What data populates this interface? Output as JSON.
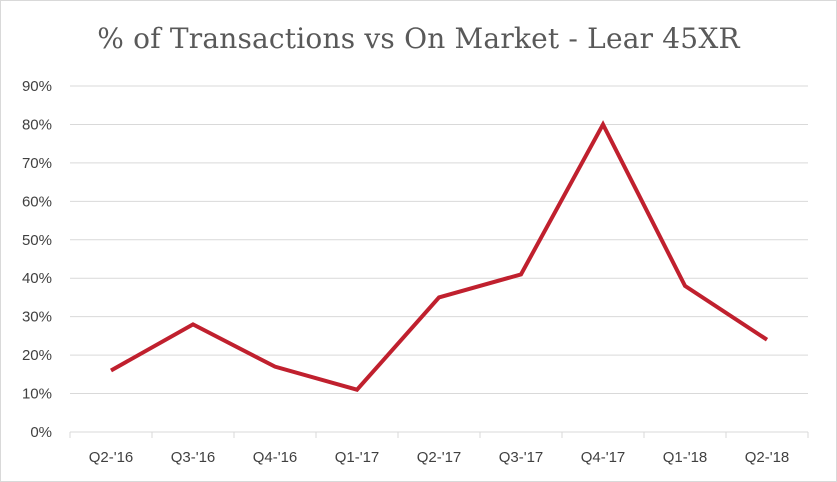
{
  "chart_data": {
    "type": "line",
    "title": "% of Transactions vs On Market - Lear 45XR",
    "xlabel": "",
    "ylabel": "",
    "categories": [
      "Q2-'16",
      "Q3-'16",
      "Q4-'16",
      "Q1-'17",
      "Q2-'17",
      "Q3-'17",
      "Q4-'17",
      "Q1-'18",
      "Q2-'18"
    ],
    "series": [
      {
        "values": [
          16,
          28,
          17,
          11,
          35,
          41,
          80,
          38,
          24
        ]
      }
    ],
    "ylim": [
      0,
      90
    ],
    "y_ticks": [
      0,
      10,
      20,
      30,
      40,
      50,
      60,
      70,
      80,
      90
    ],
    "y_tick_labels": [
      "0%",
      "10%",
      "20%",
      "30%",
      "40%",
      "50%",
      "60%",
      "70%",
      "80%",
      "90%"
    ],
    "grid": "horizontal",
    "legend": "none",
    "colors": {
      "line": "#c0202e",
      "grid": "#d9d9d9",
      "text": "#404040"
    }
  }
}
